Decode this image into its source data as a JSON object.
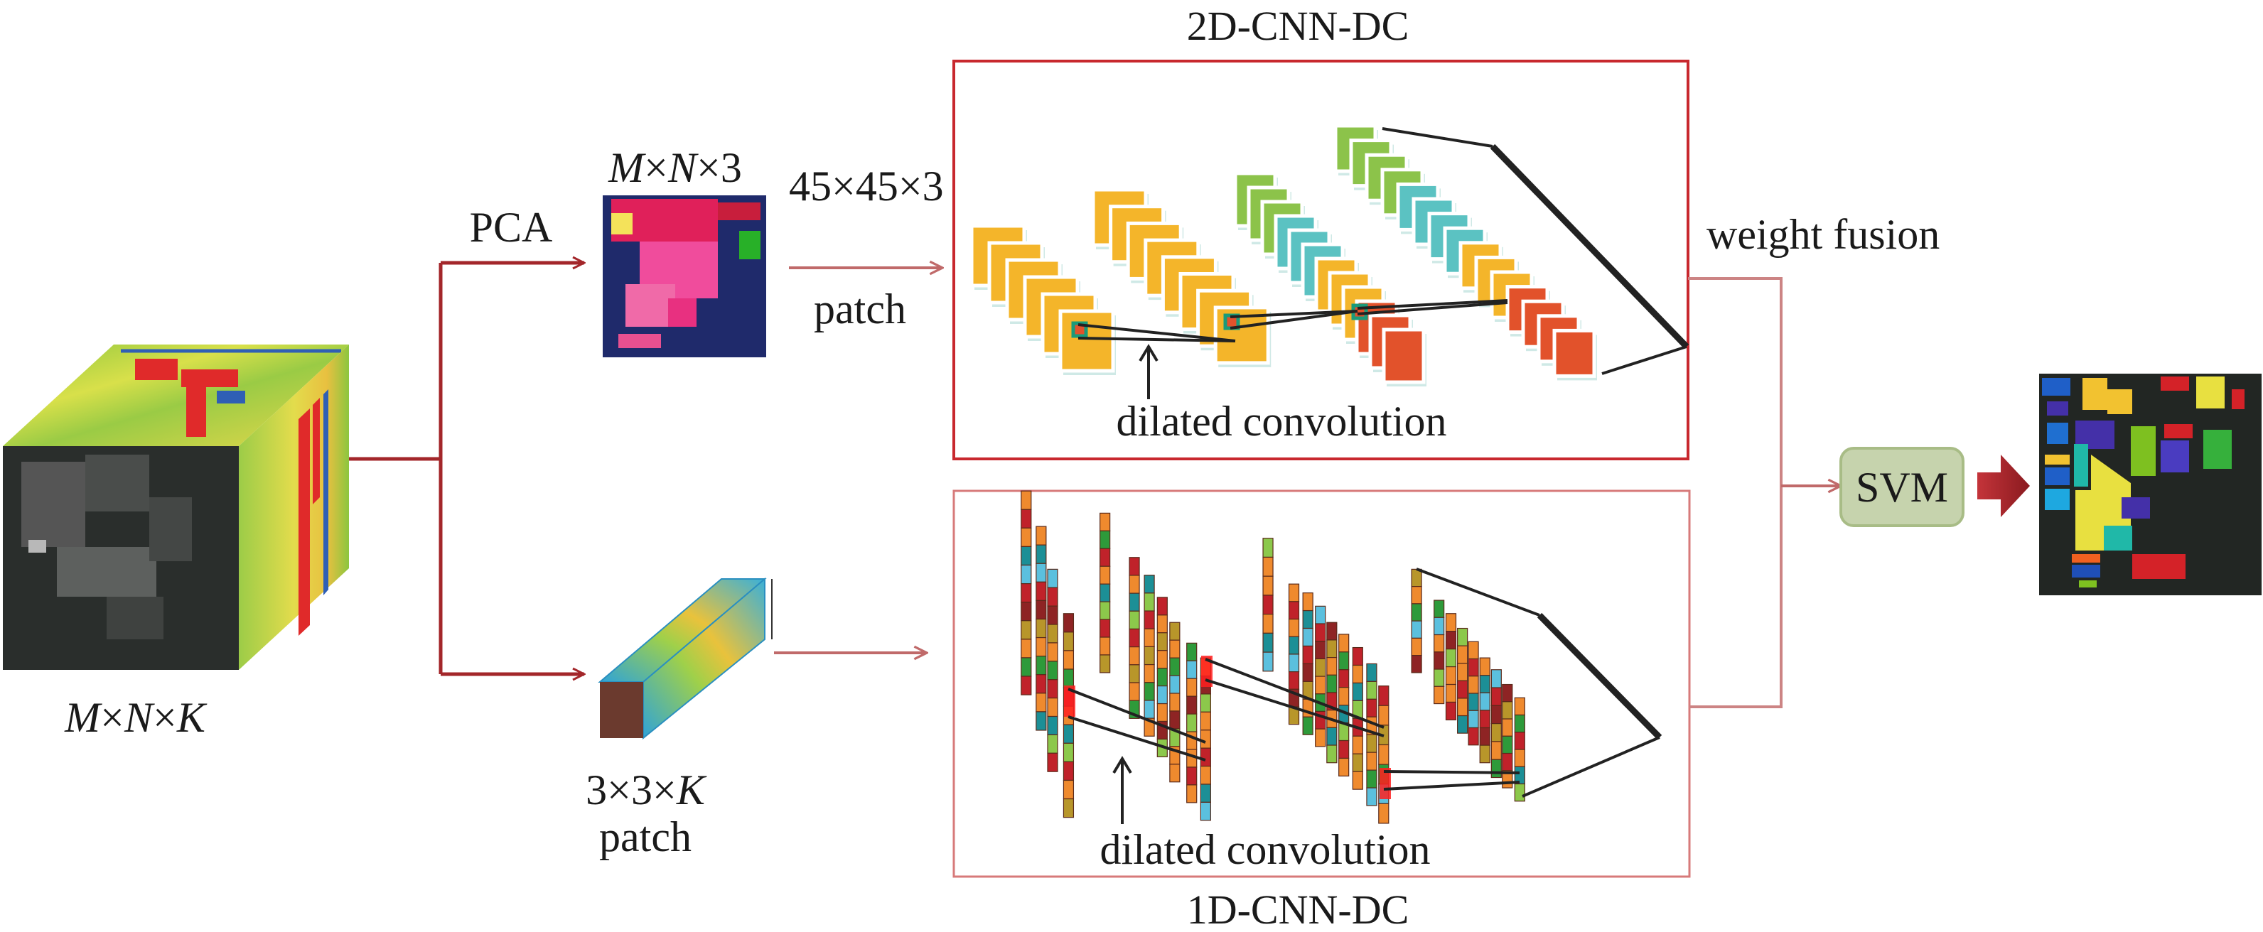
{
  "titles": {
    "top_network": "2D-CNN-DC",
    "bottom_network": "1D-CNN-DC"
  },
  "labels": {
    "pca": "PCA",
    "pca_dims": "M×N×3",
    "patch_2d_dims": "45×45×3",
    "patch_2d": "patch",
    "cube_dims": "M×N×K",
    "patch_1d_dims": "3×3×K",
    "patch_1d": "patch",
    "dilated_top": "dilated convolution",
    "dilated_bottom": "dilated convolution",
    "weight_fusion": "weight fusion",
    "svm": "SVM"
  },
  "colors": {
    "flow_line": "#a3262a",
    "box_2d_border": "#c8282e",
    "box_1d_border": "#d77a7a",
    "fusion_line": "#cc8484",
    "svm_fill": "#c6d3ad",
    "svm_border": "#a8bc86",
    "output_arrow": "#b3262b",
    "feature_orange": "#f4b52a",
    "feature_green": "#8cc34a",
    "feature_teal": "#5bc2c2",
    "feature_red": "#e2522b"
  }
}
